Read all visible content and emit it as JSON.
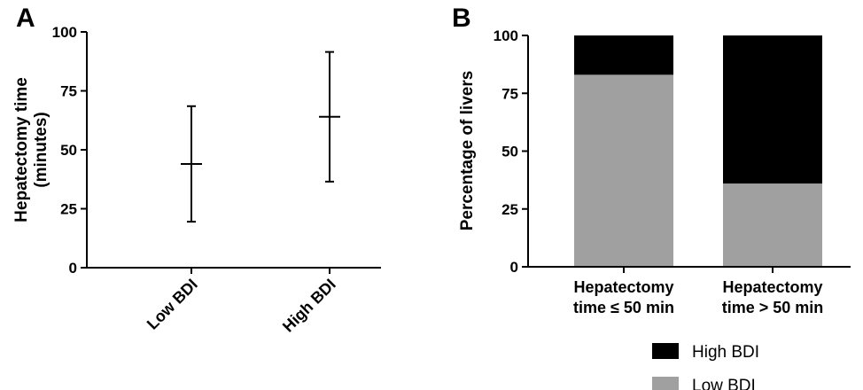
{
  "chart_data": [
    {
      "panel": "A",
      "type": "errorbar",
      "ylabel": [
        "Hepatectomy time",
        "(minutes)"
      ],
      "ylim": [
        0,
        100
      ],
      "yticks": [
        0,
        25,
        50,
        75,
        100
      ],
      "categories": [
        "Low BDI",
        "High  BDI"
      ],
      "series": [
        {
          "values": [
            44,
            64
          ],
          "lower": [
            19.5,
            36.5
          ],
          "upper": [
            68.5,
            91.5
          ]
        }
      ]
    },
    {
      "panel": "B",
      "type": "bar",
      "stacked": true,
      "ylabel": "Percentage of livers",
      "ylim": [
        0,
        100
      ],
      "yticks": [
        0,
        25,
        50,
        75,
        100
      ],
      "categories": [
        {
          "line1": "Hepatectomy",
          "line2": "time ≤ 50 min"
        },
        {
          "line1": "Hepatectomy",
          "line2": "time > 50 min"
        }
      ],
      "series": [
        {
          "name": "Low BDI",
          "values": [
            83,
            36
          ],
          "color": "#a0a0a0"
        },
        {
          "name": "High BDI",
          "values": [
            17,
            64
          ],
          "color": "#000000"
        }
      ],
      "legend": [
        {
          "name": "High BDI",
          "color": "#000000"
        },
        {
          "name": "Low BDI",
          "color": "#a0a0a0"
        }
      ],
      "legend_position": "bottom-right"
    }
  ]
}
